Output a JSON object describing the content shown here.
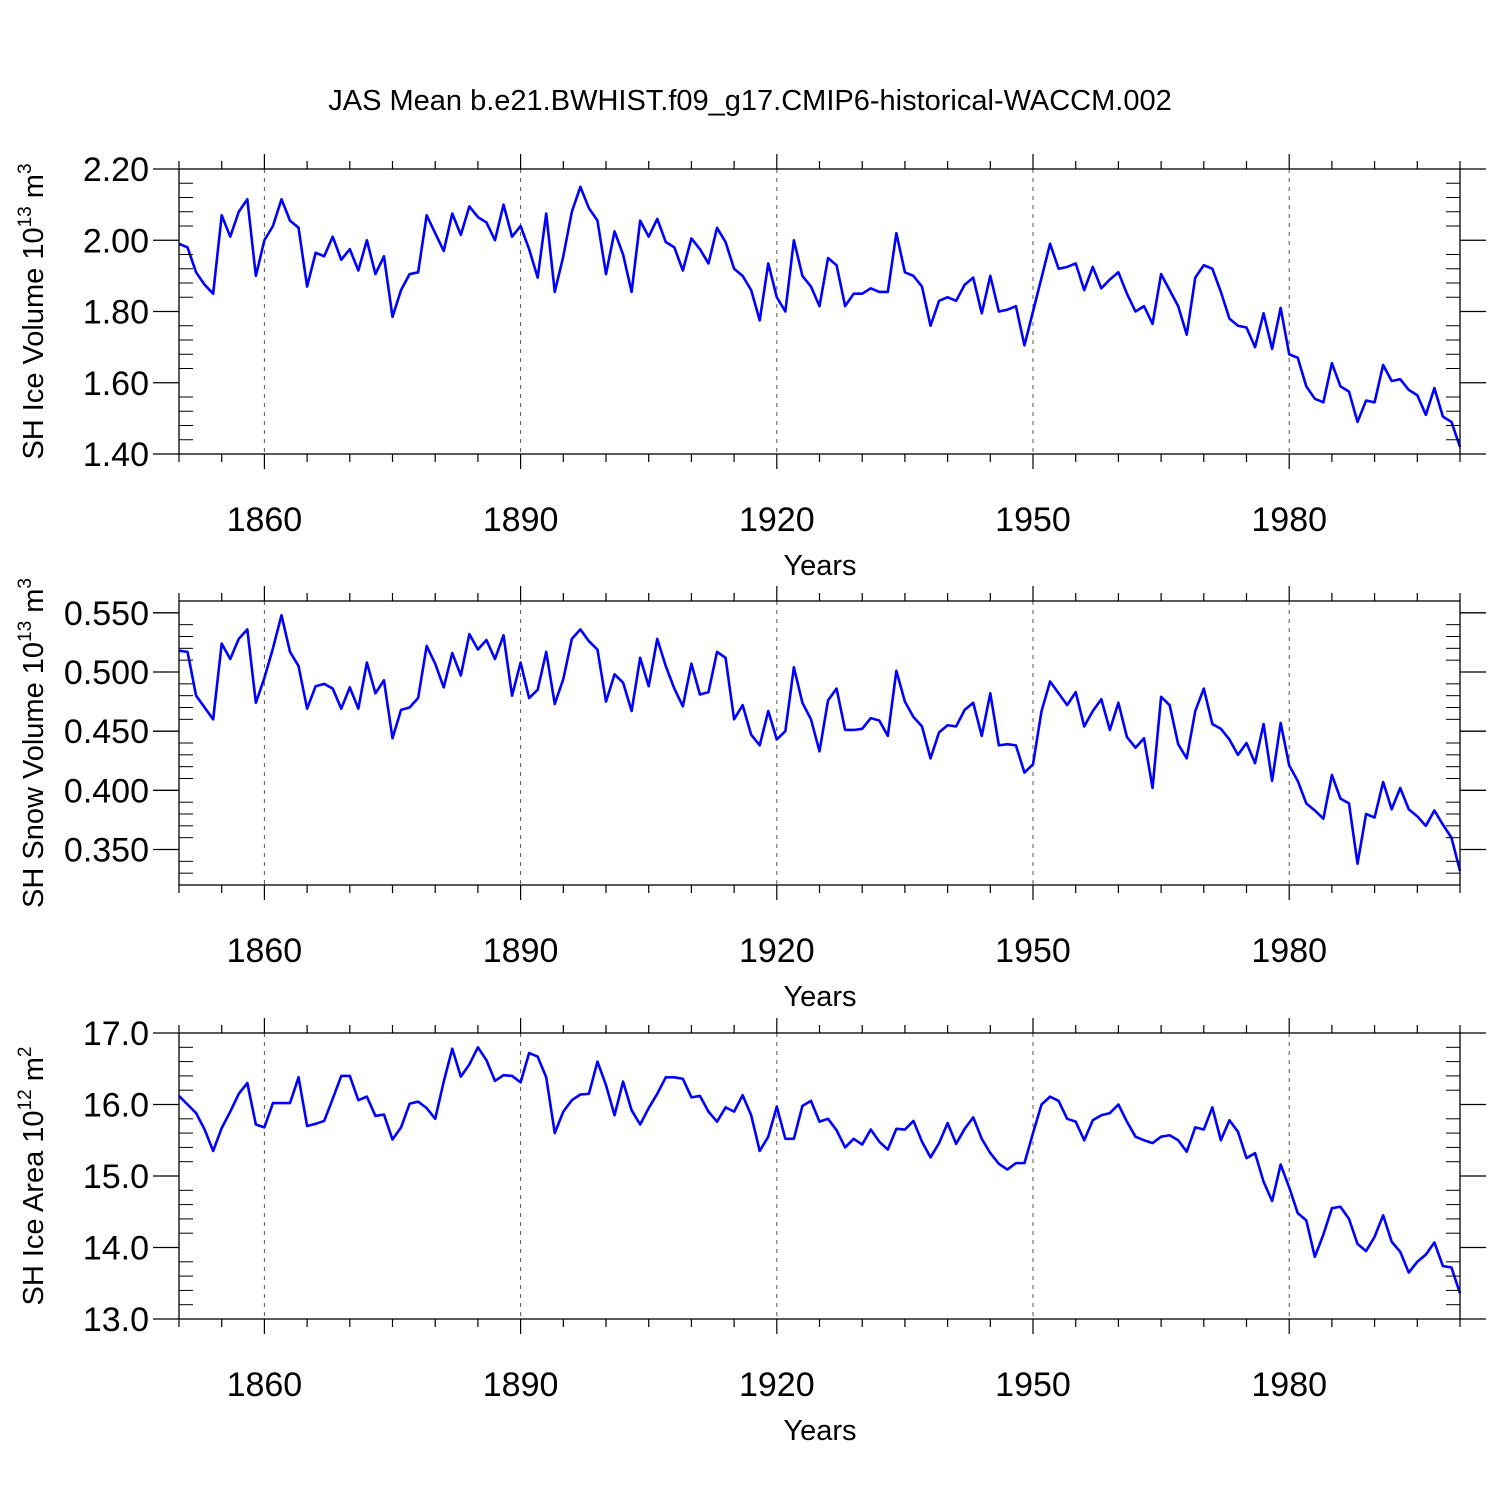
{
  "title": "JAS Mean b.e21.BWHIST.f09_g17.CMIP6-historical-WACCM.002",
  "colors": {
    "line": "#0000ff",
    "axes": "#000000",
    "grid": "#555555"
  },
  "chart_data": [
    {
      "type": "line",
      "name": "panel-ice-volume",
      "xlabel": "Years",
      "ylabel": {
        "main": "SH Ice Volume 10",
        "exp": "13",
        "unit": " m",
        "unit_exp": "3"
      },
      "xlim": [
        1850,
        2000
      ],
      "ylim": [
        1.4,
        2.2
      ],
      "xticks": [
        1860,
        1890,
        1920,
        1950,
        1980
      ],
      "xtick_labels": [
        "1860",
        "1890",
        "1920",
        "1950",
        "1980"
      ],
      "yticks": [
        1.4,
        1.6,
        1.8,
        2.0,
        2.2
      ],
      "ytick_labels": [
        "1.40",
        "1.60",
        "1.80",
        "2.00",
        "2.20"
      ],
      "y_minor_step": 0.04,
      "x_start": 1850,
      "values": [
        1.99,
        1.98,
        1.91,
        1.875,
        1.85,
        2.07,
        2.01,
        2.08,
        2.115,
        1.9,
        2.0,
        2.04,
        2.115,
        2.055,
        2.035,
        1.87,
        1.965,
        1.955,
        2.01,
        1.945,
        1.975,
        1.915,
        2.0,
        1.905,
        1.955,
        1.785,
        1.86,
        1.905,
        1.91,
        2.07,
        2.02,
        1.97,
        2.075,
        2.015,
        2.095,
        2.065,
        2.05,
        2.0,
        2.1,
        2.01,
        2.04,
        1.975,
        1.895,
        2.075,
        1.855,
        1.955,
        2.08,
        2.15,
        2.09,
        2.055,
        1.905,
        2.025,
        1.96,
        1.855,
        2.055,
        2.01,
        2.06,
        1.995,
        1.98,
        1.915,
        2.005,
        1.975,
        1.935,
        2.035,
        1.995,
        1.92,
        1.9,
        1.86,
        1.775,
        1.935,
        1.84,
        1.8,
        2.0,
        1.9,
        1.87,
        1.815,
        1.95,
        1.93,
        1.815,
        1.85,
        1.85,
        1.865,
        1.855,
        1.855,
        2.02,
        1.91,
        1.9,
        1.87,
        1.76,
        1.83,
        1.84,
        1.83,
        1.875,
        1.895,
        1.795,
        1.9,
        1.8,
        1.805,
        1.815,
        1.705,
        1.8,
        1.895,
        1.99,
        1.92,
        1.925,
        1.935,
        1.86,
        1.925,
        1.865,
        1.89,
        1.91,
        1.85,
        1.8,
        1.815,
        1.765,
        1.905,
        1.86,
        1.815,
        1.735,
        1.895,
        1.93,
        1.92,
        1.855,
        1.78,
        1.76,
        1.755,
        1.7,
        1.795,
        1.695,
        1.81,
        1.68,
        1.67,
        1.59,
        1.555,
        1.545,
        1.655,
        1.59,
        1.575,
        1.49,
        1.55,
        1.545,
        1.65,
        1.605,
        1.61,
        1.58,
        1.565,
        1.51,
        1.585,
        1.505,
        1.49,
        1.42
      ]
    },
    {
      "type": "line",
      "name": "panel-snow-volume",
      "xlabel": "Years",
      "ylabel": {
        "main": "SH Snow Volume 10",
        "exp": "13",
        "unit": " m",
        "unit_exp": "3"
      },
      "xlim": [
        1850,
        2000
      ],
      "ylim": [
        0.32,
        0.56
      ],
      "xticks": [
        1860,
        1890,
        1920,
        1950,
        1980
      ],
      "xtick_labels": [
        "1860",
        "1890",
        "1920",
        "1950",
        "1980"
      ],
      "yticks": [
        0.35,
        0.4,
        0.45,
        0.5,
        0.55
      ],
      "ytick_labels": [
        "0.350",
        "0.400",
        "0.450",
        "0.500",
        "0.550"
      ],
      "y_minor_step": 0.01,
      "x_start": 1850,
      "values": [
        0.518,
        0.517,
        0.48,
        0.47,
        0.46,
        0.524,
        0.511,
        0.528,
        0.536,
        0.474,
        0.495,
        0.52,
        0.548,
        0.517,
        0.505,
        0.469,
        0.488,
        0.49,
        0.486,
        0.469,
        0.487,
        0.469,
        0.508,
        0.482,
        0.493,
        0.444,
        0.468,
        0.47,
        0.478,
        0.522,
        0.507,
        0.487,
        0.516,
        0.497,
        0.532,
        0.519,
        0.527,
        0.511,
        0.531,
        0.48,
        0.508,
        0.478,
        0.485,
        0.517,
        0.473,
        0.494,
        0.528,
        0.536,
        0.526,
        0.519,
        0.475,
        0.498,
        0.491,
        0.467,
        0.512,
        0.488,
        0.528,
        0.505,
        0.486,
        0.471,
        0.507,
        0.481,
        0.483,
        0.517,
        0.512,
        0.46,
        0.472,
        0.447,
        0.438,
        0.467,
        0.443,
        0.45,
        0.504,
        0.474,
        0.46,
        0.433,
        0.476,
        0.486,
        0.451,
        0.451,
        0.452,
        0.461,
        0.459,
        0.446,
        0.501,
        0.475,
        0.462,
        0.454,
        0.427,
        0.449,
        0.455,
        0.454,
        0.468,
        0.474,
        0.446,
        0.482,
        0.438,
        0.439,
        0.438,
        0.415,
        0.422,
        0.467,
        0.492,
        0.482,
        0.472,
        0.483,
        0.454,
        0.467,
        0.477,
        0.451,
        0.474,
        0.445,
        0.436,
        0.444,
        0.402,
        0.479,
        0.472,
        0.439,
        0.427,
        0.467,
        0.486,
        0.456,
        0.452,
        0.443,
        0.43,
        0.44,
        0.423,
        0.456,
        0.408,
        0.457,
        0.421,
        0.408,
        0.389,
        0.383,
        0.376,
        0.413,
        0.393,
        0.389,
        0.338,
        0.38,
        0.377,
        0.407,
        0.384,
        0.402,
        0.384,
        0.378,
        0.37,
        0.383,
        0.371,
        0.36,
        0.332
      ]
    },
    {
      "type": "line",
      "name": "panel-ice-area",
      "xlabel": "Years",
      "ylabel": {
        "main": "SH Ice Area 10",
        "exp": "12",
        "unit": " m",
        "unit_exp": "2"
      },
      "xlim": [
        1850,
        2000
      ],
      "ylim": [
        13.0,
        17.0
      ],
      "xticks": [
        1860,
        1890,
        1920,
        1950,
        1980
      ],
      "xtick_labels": [
        "1860",
        "1890",
        "1920",
        "1950",
        "1980"
      ],
      "yticks": [
        13.0,
        14.0,
        15.0,
        16.0,
        17.0
      ],
      "ytick_labels": [
        "13.0",
        "14.0",
        "15.0",
        "16.0",
        "17.0"
      ],
      "y_minor_step": 0.2,
      "x_start": 1850,
      "values": [
        16.12,
        16.0,
        15.88,
        15.65,
        15.35,
        15.67,
        15.9,
        16.15,
        16.3,
        15.72,
        15.68,
        16.02,
        16.02,
        16.02,
        16.38,
        15.7,
        15.73,
        15.77,
        16.08,
        16.4,
        16.4,
        16.06,
        16.11,
        15.84,
        15.86,
        15.51,
        15.68,
        16.01,
        16.04,
        15.95,
        15.8,
        16.32,
        16.78,
        16.39,
        16.56,
        16.8,
        16.62,
        16.33,
        16.41,
        16.4,
        16.31,
        16.72,
        16.67,
        16.38,
        15.6,
        15.9,
        16.06,
        16.14,
        16.15,
        16.6,
        16.27,
        15.85,
        16.32,
        15.92,
        15.72,
        15.95,
        16.15,
        16.38,
        16.38,
        16.36,
        16.1,
        16.12,
        15.9,
        15.76,
        15.96,
        15.9,
        16.13,
        15.85,
        15.35,
        15.55,
        15.97,
        15.52,
        15.52,
        15.98,
        16.05,
        15.76,
        15.8,
        15.64,
        15.4,
        15.52,
        15.44,
        15.65,
        15.48,
        15.37,
        15.66,
        15.65,
        15.77,
        15.48,
        15.26,
        15.46,
        15.74,
        15.45,
        15.66,
        15.82,
        15.52,
        15.32,
        15.17,
        15.09,
        15.18,
        15.18,
        15.6,
        16.0,
        16.11,
        16.05,
        15.8,
        15.76,
        15.5,
        15.78,
        15.85,
        15.88,
        16.0,
        15.76,
        15.55,
        15.5,
        15.46,
        15.55,
        15.57,
        15.5,
        15.34,
        15.68,
        15.65,
        15.96,
        15.5,
        15.78,
        15.62,
        15.25,
        15.32,
        14.92,
        14.65,
        15.16,
        14.84,
        14.48,
        14.38,
        13.87,
        14.18,
        14.55,
        14.57,
        14.4,
        14.05,
        13.95,
        14.15,
        14.45,
        14.08,
        13.94,
        13.65,
        13.8,
        13.9,
        14.07,
        13.74,
        13.72,
        13.36
      ]
    }
  ]
}
